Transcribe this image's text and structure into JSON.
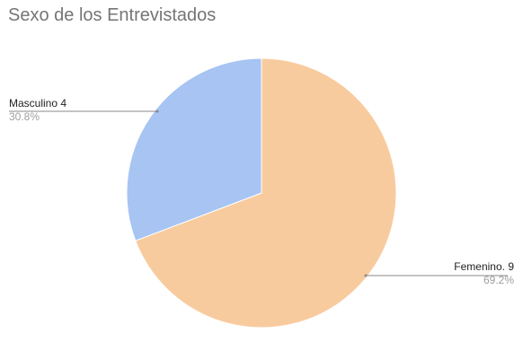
{
  "chart_data": {
    "type": "pie",
    "title": "Sexo de los Entrevistados",
    "slices": [
      {
        "label": "Femenino. 9",
        "value": 9,
        "percent_label": "69.2%",
        "color": "#F8CB9E"
      },
      {
        "label": "Masculino 4",
        "value": 4,
        "percent_label": "30.8%",
        "color": "#A7C4F2"
      }
    ],
    "start_angle_deg": 0,
    "direction": "clockwise",
    "legend": "none"
  }
}
